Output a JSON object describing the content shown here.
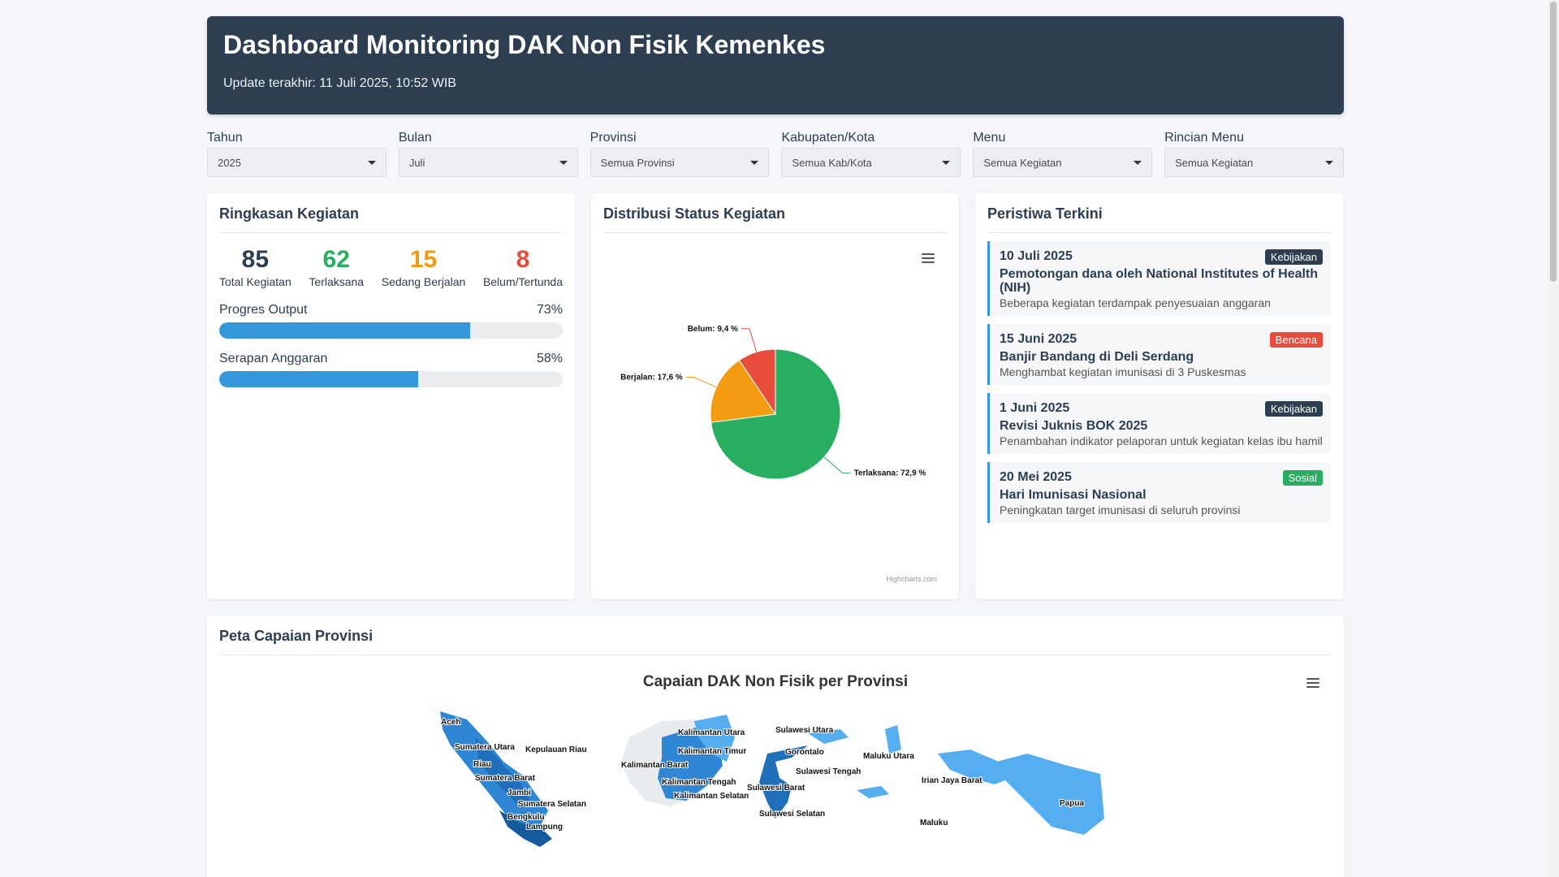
{
  "header": {
    "title": "Dashboard Monitoring DAK Non Fisik Kemenkes",
    "updated": "Update terakhir: 11 Juli 2025, 10:52 WIB"
  },
  "filters": [
    {
      "label": "Tahun",
      "value": "2025"
    },
    {
      "label": "Bulan",
      "value": "Juli"
    },
    {
      "label": "Provinsi",
      "value": "Semua Provinsi"
    },
    {
      "label": "Kabupaten/Kota",
      "value": "Semua Kab/Kota"
    },
    {
      "label": "Menu",
      "value": "Semua Kegiatan"
    },
    {
      "label": "Rincian Menu",
      "value": "Semua Kegiatan"
    }
  ],
  "summary": {
    "title": "Ringkasan Kegiatan",
    "stats": [
      {
        "value": "85",
        "label": "Total Kegiatan",
        "color": "#2c3e50"
      },
      {
        "value": "62",
        "label": "Terlaksana",
        "color": "#27ae60"
      },
      {
        "value": "15",
        "label": "Sedang Berjalan",
        "color": "#f39c12"
      },
      {
        "value": "8",
        "label": "Belum/Tertunda",
        "color": "#e74c3c"
      }
    ],
    "progress": [
      {
        "label": "Progres Output",
        "percent_text": "73%",
        "percent": 73
      },
      {
        "label": "Serapan Anggaran",
        "percent_text": "58%",
        "percent": 58
      }
    ]
  },
  "status_chart": {
    "title": "Distribusi Status Kegiatan",
    "credit": "Highcharts.com"
  },
  "chart_data": {
    "type": "pie",
    "title": "",
    "slices": [
      {
        "name": "Terlaksana",
        "value": 72.9,
        "label": "Terlaksana: 72,9 %",
        "color": "#27ae60"
      },
      {
        "name": "Berjalan",
        "value": 17.6,
        "label": "Berjalan: 17,6 %",
        "color": "#f39c12"
      },
      {
        "name": "Belum",
        "value": 9.4,
        "label": "Belum: 9,4 %",
        "color": "#e74c3c"
      }
    ]
  },
  "events": {
    "title": "Peristiwa Terkini",
    "items": [
      {
        "date": "10 Juli 2025",
        "badge": "Kebijakan",
        "badge_color": "#2c3e50",
        "title": "Pemotongan dana oleh National Institutes of Health (NIH)",
        "desc": "Beberapa kegiatan terdampak penyesuaian anggaran"
      },
      {
        "date": "15 Juni 2025",
        "badge": "Bencana",
        "badge_color": "#e74c3c",
        "title": "Banjir Bandang di Deli Serdang",
        "desc": "Menghambat kegiatan imunisasi di 3 Puskesmas"
      },
      {
        "date": "1 Juni 2025",
        "badge": "Kebijakan",
        "badge_color": "#2c3e50",
        "title": "Revisi Juknis BOK 2025",
        "desc": "Penambahan indikator pelaporan untuk kegiatan kelas ibu hamil"
      },
      {
        "date": "20 Mei 2025",
        "badge": "Sosial",
        "badge_color": "#27ae60",
        "title": "Hari Imunisasi Nasional",
        "desc": "Peningkatan target imunisasi di seluruh provinsi"
      }
    ]
  },
  "map": {
    "card_title": "Peta Capaian Provinsi",
    "chart_title": "Capaian DAK Non Fisik per Provinsi",
    "regions": [
      "Aceh",
      "Sumatera Utara",
      "Riau",
      "Kepulauan Riau",
      "Sumatera Barat",
      "Jambi",
      "Sumatera Selatan",
      "Bengkulu",
      "Lampung",
      "Kalimantan Barat",
      "Kalimantan Utara",
      "Kalimantan Timur",
      "Kalimantan Tengah",
      "Kalimantan Selatan",
      "Sulawesi Utara",
      "Gorontalo",
      "Sulawesi Tengah",
      "Sulawesi Barat",
      "Sulawesi Selatan",
      "Maluku Utara",
      "Irian Jaya Barat",
      "Papua",
      "Maluku"
    ]
  }
}
